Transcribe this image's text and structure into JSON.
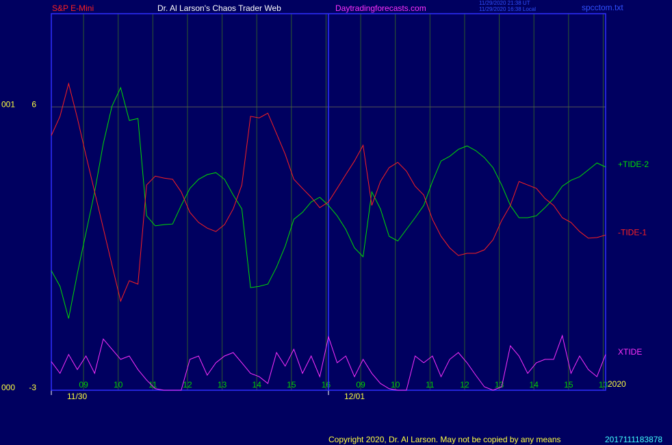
{
  "chart_data": {
    "type": "line",
    "instrument": "S&P E-Mini",
    "title": "Dr. Al Larson's Chaos Trader Web",
    "website": "Daytradingforecasts.com",
    "timestamps": [
      "11/29/2020 21:38 UT",
      "11/29/2020 16:38 Local"
    ],
    "file": "spcctom.txt",
    "year": "2020",
    "copyright": "Copyright 2020, Dr. Al Larson. May not be copied by any means",
    "footer_code": "2017111183878",
    "x": [
      0,
      0.25,
      0.5,
      0.75,
      1,
      1.25,
      1.5,
      1.75,
      2,
      2.25,
      2.5,
      2.75,
      3,
      3.25,
      3.5,
      3.75,
      4,
      4.25,
      4.5,
      4.75,
      5,
      5.25,
      5.5,
      5.75,
      6,
      6.25,
      6.5,
      6.75,
      7,
      7.25,
      7.5,
      7.75,
      8,
      8.25,
      8.5,
      8.75,
      9,
      9.25,
      9.5,
      9.75,
      10,
      10.25,
      10.5,
      10.75,
      11,
      11.25,
      11.5,
      11.75,
      12,
      12.25,
      12.5,
      12.75,
      13,
      13.25,
      13.5,
      13.75,
      14,
      14.25,
      14.5,
      14.75,
      15,
      15.25,
      15.5,
      15.75,
      16
    ],
    "xlim": [
      0,
      16
    ],
    "xticks": [
      {
        "value": 0.93,
        "label": "09"
      },
      {
        "value": 1.93,
        "label": "10"
      },
      {
        "value": 2.93,
        "label": "11"
      },
      {
        "value": 3.93,
        "label": "12"
      },
      {
        "value": 4.93,
        "label": "13"
      },
      {
        "value": 5.93,
        "label": "14"
      },
      {
        "value": 6.93,
        "label": "15"
      },
      {
        "value": 7.93,
        "label": "16"
      },
      {
        "value": 8.93,
        "label": "09"
      },
      {
        "value": 9.93,
        "label": "10"
      },
      {
        "value": 10.93,
        "label": "11"
      },
      {
        "value": 11.93,
        "label": "12"
      },
      {
        "value": 12.93,
        "label": "13"
      },
      {
        "value": 13.93,
        "label": "14"
      },
      {
        "value": 14.93,
        "label": "15"
      },
      {
        "value": 15.93,
        "label": "13"
      }
    ],
    "days": [
      {
        "value": 0,
        "label": "11/30"
      },
      {
        "value": 8,
        "label": "12/01"
      }
    ],
    "ylim": [
      -3,
      8.96
    ],
    "yticks": [
      -3,
      6
    ],
    "y_codes": [
      "000",
      "001"
    ],
    "y2lim": [
      0,
      10
    ],
    "series": [
      {
        "name": "+TIDE-2",
        "color": "#00e000",
        "values": [
          0.8,
          0.3,
          -0.72,
          0.7,
          2.0,
          3.3,
          4.83,
          6.02,
          6.61,
          5.57,
          5.63,
          2.54,
          2.22,
          2.26,
          2.28,
          2.87,
          3.41,
          3.7,
          3.85,
          3.91,
          3.7,
          3.2,
          2.76,
          0.26,
          0.3,
          0.37,
          0.91,
          1.57,
          2.43,
          2.65,
          2.98,
          3.13,
          2.87,
          2.54,
          2.11,
          1.52,
          1.24,
          3.3,
          2.76,
          1.89,
          1.74,
          2.11,
          2.48,
          2.87,
          3.63,
          4.28,
          4.43,
          4.65,
          4.76,
          4.61,
          4.39,
          4.07,
          3.52,
          2.87,
          2.48,
          2.48,
          2.54,
          2.8,
          3.09,
          3.48,
          3.67,
          3.78,
          4.0,
          4.22,
          4.09
        ]
      },
      {
        "name": "-TIDE-1",
        "color": "#ff2020",
        "values": [
          5.09,
          5.7,
          6.74,
          5.65,
          4.46,
          3.3,
          2.15,
          0.98,
          -0.17,
          0.48,
          0.37,
          3.52,
          3.8,
          3.74,
          3.7,
          3.3,
          2.65,
          2.33,
          2.15,
          2.04,
          2.26,
          2.76,
          3.52,
          5.7,
          5.65,
          5.8,
          5.15,
          4.5,
          3.7,
          3.41,
          3.13,
          2.8,
          2.98,
          3.41,
          3.85,
          4.28,
          4.78,
          2.87,
          3.63,
          4.07,
          4.24,
          3.96,
          3.48,
          3.2,
          2.43,
          1.89,
          1.52,
          1.28,
          1.35,
          1.35,
          1.46,
          1.78,
          2.39,
          2.87,
          3.63,
          3.52,
          3.41,
          3.09,
          2.87,
          2.48,
          2.33,
          2.04,
          1.83,
          1.85,
          1.93
        ]
      },
      {
        "name": "XTIDE",
        "color": "#ff30ff",
        "axis": "y2",
        "values": [
          0.76,
          0.45,
          0.95,
          0.55,
          0.91,
          0.45,
          1.36,
          1.09,
          0.82,
          0.91,
          0.55,
          0.27,
          0.04,
          0,
          0,
          0,
          0.82,
          0.91,
          0.4,
          0.73,
          0.91,
          1.0,
          0.73,
          0.45,
          0.36,
          0.18,
          1.0,
          0.64,
          1.09,
          0.45,
          0.91,
          0.36,
          1.42,
          0.73,
          0.91,
          0.36,
          0.82,
          0.45,
          0.18,
          0.04,
          0,
          0,
          0.91,
          0.73,
          0.91,
          0.36,
          0.82,
          1.0,
          0.73,
          0.4,
          0.09,
          0,
          0.09,
          1.18,
          0.91,
          0.45,
          0.73,
          0.82,
          0.82,
          1.45,
          0.45,
          0.91,
          0.55,
          0.36,
          0.95
        ]
      }
    ]
  }
}
